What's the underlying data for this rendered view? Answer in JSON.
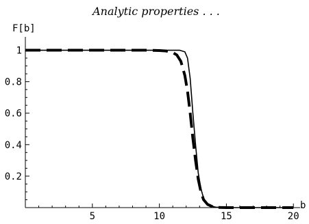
{
  "chart_data": {
    "type": "line",
    "title": "Analytic properties . . .",
    "xlabel": "b",
    "ylabel": "F[b]",
    "xlim": [
      0,
      20.5
    ],
    "ylim": [
      0,
      1.05
    ],
    "x_ticks": [
      5,
      10,
      15,
      20
    ],
    "x_tick_labels": [
      "5",
      "10",
      "15",
      "20"
    ],
    "y_ticks": [
      0.2,
      0.4,
      0.6,
      0.8,
      1
    ],
    "y_tick_labels": [
      "0.2",
      "0.4",
      "0.6",
      "0.8",
      "1"
    ],
    "grid": false,
    "series": [
      {
        "style": "solid",
        "color": "#000000",
        "x": [
          0,
          2,
          4,
          6,
          8,
          10,
          11,
          11.5,
          11.9,
          12.1,
          12.3,
          12.5,
          12.7,
          12.9,
          13.1,
          13.3,
          13.5,
          13.8,
          14.2,
          15,
          16,
          18,
          20
        ],
        "y": [
          1,
          1,
          1,
          1,
          1,
          1,
          1,
          1,
          0.99,
          0.95,
          0.82,
          0.6,
          0.4,
          0.22,
          0.12,
          0.06,
          0.03,
          0.01,
          0.003,
          0,
          0,
          0,
          0
        ]
      },
      {
        "style": "dashed",
        "color": "#000000",
        "x": [
          0,
          2,
          4,
          6,
          8,
          9,
          10,
          10.5,
          11,
          11.3,
          11.6,
          11.9,
          12.1,
          12.3,
          12.5,
          12.7,
          12.9,
          13.1,
          13.3,
          13.6,
          14,
          14.5,
          15,
          16,
          18,
          20
        ],
        "y": [
          1,
          1,
          1,
          1,
          1,
          1,
          0.998,
          0.995,
          0.985,
          0.97,
          0.93,
          0.84,
          0.74,
          0.6,
          0.44,
          0.3,
          0.18,
          0.1,
          0.05,
          0.02,
          0.005,
          0.001,
          0,
          0,
          0,
          0
        ]
      }
    ]
  }
}
